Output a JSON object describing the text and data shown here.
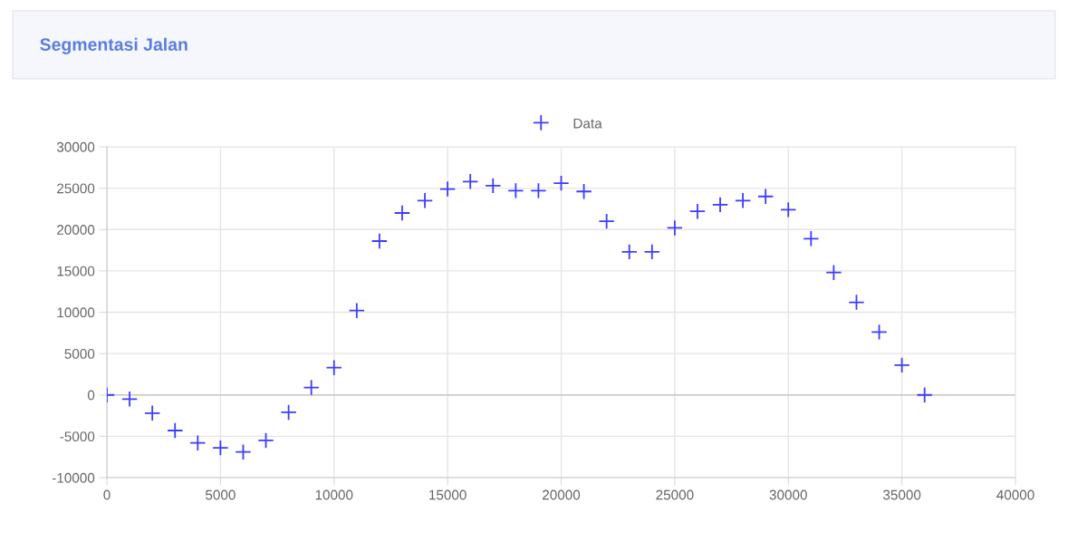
{
  "chart_data": {
    "type": "scatter",
    "title": "Segmentasi Jalan",
    "legend": "top",
    "grid": true,
    "marker": "cross",
    "xlim": [
      0,
      40000
    ],
    "xticks": [
      0,
      5000,
      10000,
      15000,
      20000,
      25000,
      30000,
      35000,
      40000
    ],
    "ylim": [
      -10000,
      30000
    ],
    "yticks": [
      -10000,
      -5000,
      0,
      5000,
      10000,
      15000,
      20000,
      25000,
      30000
    ],
    "series": [
      {
        "name": "Data",
        "color": "#3d3dff",
        "x": [
          0,
          1000,
          2000,
          3000,
          4000,
          5000,
          6000,
          7000,
          8000,
          9000,
          10000,
          11000,
          12000,
          13000,
          14000,
          15000,
          16000,
          17000,
          18000,
          19000,
          20000,
          21000,
          22000,
          23000,
          24000,
          25000,
          26000,
          27000,
          28000,
          29000,
          30000,
          31000,
          32000,
          33000,
          34000,
          35000,
          36000
        ],
        "values": [
          0,
          -500,
          -2200,
          -4300,
          -5800,
          -6400,
          -6900,
          -5500,
          -2100,
          900,
          3300,
          10200,
          18600,
          22000,
          23500,
          24900,
          25800,
          25300,
          24700,
          24700,
          25600,
          24600,
          21000,
          17300,
          17300,
          20200,
          22200,
          23000,
          23500,
          24000,
          22400,
          18900,
          14800,
          11200,
          7600,
          3600,
          0
        ]
      }
    ]
  }
}
